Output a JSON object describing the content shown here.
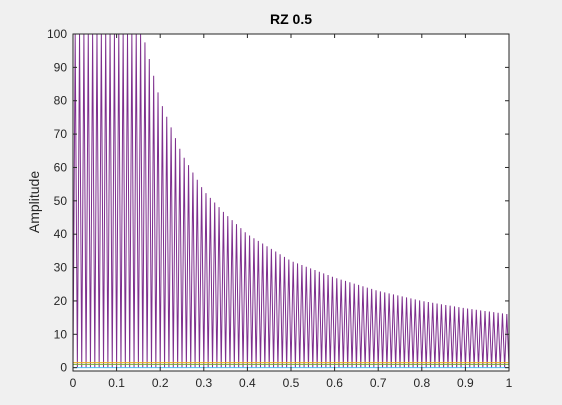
{
  "chart_data": {
    "type": "line",
    "title": "RZ 0.5",
    "xlabel": "",
    "ylabel": "Amplitude",
    "xlim": [
      0,
      1
    ],
    "ylim": [
      -1,
      100
    ],
    "xticks": [
      "0",
      "0.1",
      "0.2",
      "0.3",
      "0.4",
      "0.5",
      "0.6",
      "0.7",
      "0.8",
      "0.9",
      "1"
    ],
    "yticks": [
      "0",
      "10",
      "20",
      "30",
      "40",
      "50",
      "60",
      "70",
      "80",
      "90",
      "100"
    ],
    "grid": false,
    "series": [
      {
        "color": "#7E2F8E",
        "style": "oscillation",
        "oscillations": 100,
        "envelope_x": [
          0.0,
          0.16,
          0.2,
          0.25,
          0.3,
          0.35,
          0.4,
          0.5,
          0.6,
          0.7,
          0.8,
          0.9,
          1.0
        ],
        "envelope_y": [
          100,
          100,
          80,
          64,
          53,
          46,
          40,
          32,
          27,
          23,
          20,
          17.8,
          16
        ]
      },
      {
        "color": "#EDB120",
        "values_constant": 1.5
      },
      {
        "color": "#77AC30",
        "values_constant": 1.0
      },
      {
        "color": "#4DBEEE",
        "values_constant": 0.0
      }
    ],
    "colors": {
      "axes_bg": "#ffffff",
      "figure_bg": "#f0f0f0",
      "axis": "#262626"
    }
  }
}
